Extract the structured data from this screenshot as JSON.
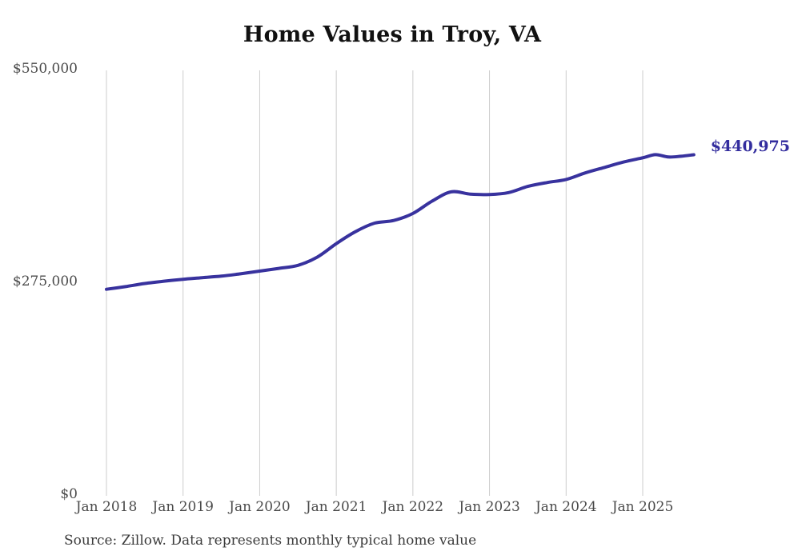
{
  "chart_data": {
    "type": "line",
    "title": "Home Values in Troy, VA",
    "xlabel": "",
    "ylabel": "",
    "ylim": [
      0,
      550000
    ],
    "grid": "vertical-only",
    "legend": "none",
    "line_color": "#38329e",
    "grid_color": "#cccccc",
    "axis_label_color": "#4a4a4a",
    "title_color": "#111111",
    "end_label": "$440,975",
    "end_value": 440975,
    "source_note": "Source: Zillow. Data represents monthly typical home value",
    "y_ticks": [
      {
        "label": "$550,000",
        "value": 550000
      },
      {
        "label": "$275,000",
        "value": 275000
      },
      {
        "label": "$0",
        "value": 0
      }
    ],
    "x_ticks": [
      {
        "label": "Jan 2018",
        "date": "2018-01"
      },
      {
        "label": "Jan 2019",
        "date": "2019-01"
      },
      {
        "label": "Jan 2020",
        "date": "2020-01"
      },
      {
        "label": "Jan 2021",
        "date": "2021-01"
      },
      {
        "label": "Jan 2022",
        "date": "2022-01"
      },
      {
        "label": "Jan 2023",
        "date": "2023-01"
      },
      {
        "label": "Jan 2024",
        "date": "2024-01"
      },
      {
        "label": "Jan 2025",
        "date": "2025-01"
      }
    ],
    "series": [
      {
        "name": "Typical home value",
        "dates": [
          "2018-01",
          "2018-04",
          "2018-07",
          "2018-10",
          "2019-01",
          "2019-04",
          "2019-07",
          "2019-10",
          "2020-01",
          "2020-04",
          "2020-07",
          "2020-10",
          "2021-01",
          "2021-04",
          "2021-07",
          "2021-10",
          "2022-01",
          "2022-04",
          "2022-07",
          "2022-10",
          "2023-01",
          "2023-04",
          "2023-07",
          "2023-10",
          "2024-01",
          "2024-04",
          "2024-07",
          "2024-10",
          "2025-01",
          "2025-03",
          "2025-05",
          "2025-07",
          "2025-09"
        ],
        "values": [
          267000,
          270500,
          274500,
          277500,
          280000,
          282000,
          284000,
          287000,
          290500,
          294000,
          298000,
          308500,
          326000,
          341500,
          352500,
          356000,
          365000,
          381000,
          393000,
          390000,
          389500,
          392000,
          400000,
          405000,
          409000,
          417500,
          424500,
          431500,
          437000,
          441000,
          438000,
          439000,
          440975
        ]
      }
    ]
  }
}
